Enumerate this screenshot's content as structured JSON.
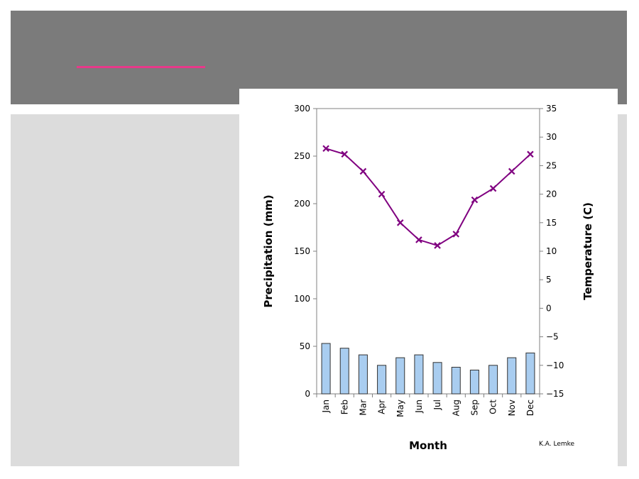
{
  "slide": {
    "header_color": "#7b7b7b",
    "accent_color": "#e8388a",
    "body_color": "#dcdcdc"
  },
  "chart_data": {
    "type": "bar+line",
    "title": "",
    "xlabel": "Month",
    "ylabel_left": "Precipitation (mm)",
    "ylabel_right": "Temperature (C)",
    "credit": "K.A. Lemke",
    "categories": [
      "Jan",
      "Feb",
      "Mar",
      "Apr",
      "May",
      "Jun",
      "Jul",
      "Aug",
      "Sep",
      "Oct",
      "Nov",
      "Dec"
    ],
    "y_left": {
      "min": 0,
      "max": 300,
      "ticks": [
        0,
        50,
        100,
        150,
        200,
        250,
        300
      ]
    },
    "y_right": {
      "min": -15,
      "max": 35,
      "ticks": [
        -15,
        -10,
        -5,
        0,
        5,
        10,
        15,
        20,
        25,
        30,
        35
      ]
    },
    "series": [
      {
        "type": "bar",
        "axis": "left",
        "values": [
          53,
          48,
          41,
          30,
          38,
          41,
          33,
          28,
          25,
          30,
          38,
          43
        ],
        "color": "#a9cdf0"
      },
      {
        "type": "line",
        "axis": "right",
        "values": [
          28,
          27,
          24,
          20,
          15,
          12,
          11,
          13,
          19,
          21,
          24,
          27
        ],
        "color": "#800080"
      }
    ],
    "grid": false,
    "legend": "none"
  }
}
